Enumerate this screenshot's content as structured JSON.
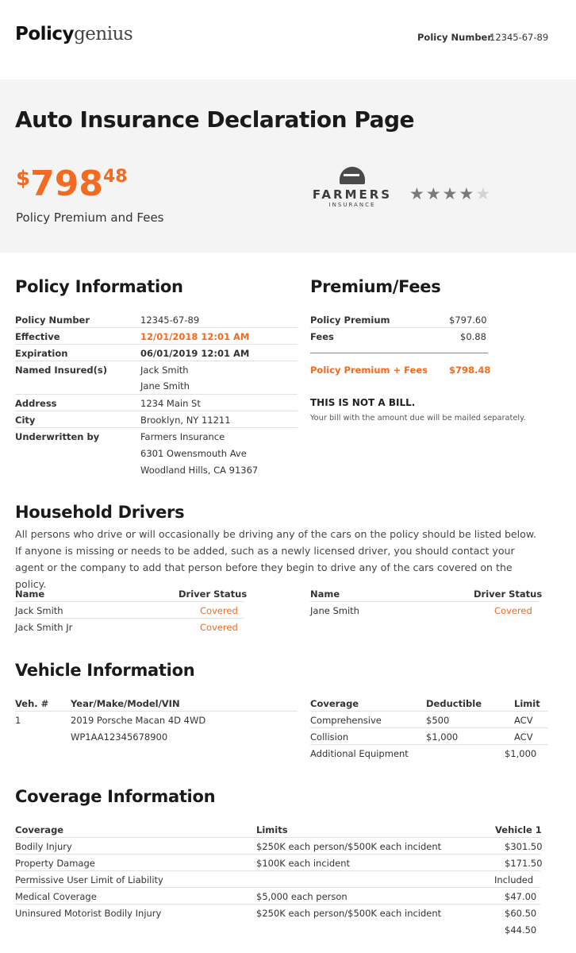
{
  "header": {
    "logo_bold": "Policy",
    "logo_light": "genius",
    "policy_number_label": "Policy Number",
    "policy_number_value": "12345-67-89"
  },
  "hero": {
    "title": "Auto Insurance Declaration Page",
    "price_currency": "$",
    "price_dollars": "798",
    "price_cents": "48",
    "price_label": "Policy Premium and Fees",
    "carrier_name": "FARMERS",
    "carrier_sub": "INSURANCE",
    "rating": {
      "value": 4,
      "max": 5,
      "filled": "★★★★",
      "empty": "★"
    }
  },
  "policy_info": {
    "title": "Policy Information",
    "policy_number_label": "Policy Number",
    "policy_number_value": "12345-67-89",
    "effective_label": "Effective",
    "effective_value": "12/01/2018 12:01 AM",
    "expiration_label": "Expiration",
    "expiration_value": "06/01/2019 12:01 AM",
    "named_insured_label": "Named Insured(s)",
    "named_insured_1": "Jack Smith",
    "named_insured_2": "Jane Smith",
    "address_label": "Address",
    "address_value": "1234 Main St",
    "city_label": "City",
    "city_value": "Brooklyn, NY 11211",
    "underwritten_label": "Underwritten by",
    "underwriter_1": "Farmers Insurance",
    "underwriter_2": "6301 Owensmouth Ave",
    "underwriter_3": "Woodland Hills, CA 91367"
  },
  "premium": {
    "title": "Premium/Fees",
    "policy_premium_label": "Policy Premium",
    "policy_premium_value": "$797.60",
    "fees_label": "Fees",
    "fees_value": "$0.88",
    "total_label": "Policy Premium + Fees",
    "total_value": "$798.48",
    "notice_title": "THIS IS NOT A BILL.",
    "notice_text": "Your bill with the amount due will be mailed separately."
  },
  "drivers": {
    "title": "Household Drivers",
    "intro": "All persons who drive or will occasionally be driving any of the cars on the policy should be listed below. If anyone is missing or needs to be added, such as a newly licensed driver, you should contact your agent or the company to add that person before they begin to drive any of the cars covered on the policy.",
    "col_name": "Name",
    "col_status": "Driver Status",
    "left": [
      {
        "name": "Jack Smith",
        "status": "Covered"
      },
      {
        "name": "Jack Smith Jr",
        "status": "Covered"
      }
    ],
    "right": [
      {
        "name": "Jane Smith",
        "status": "Covered"
      }
    ]
  },
  "vehicle": {
    "title": "Vehicle Information",
    "col_veh": "Veh. #",
    "col_ymm": "Year/Make/Model/VIN",
    "veh_number": "1",
    "ymm": "2019 Porsche Macan 4D 4WD",
    "vin": "WP1AA12345678900",
    "col_coverage": "Coverage",
    "col_deductible": "Deductible",
    "col_limit": "Limit",
    "rows": [
      {
        "coverage": "Comprehensive",
        "deductible": "$500",
        "limit": "ACV"
      },
      {
        "coverage": "Collision",
        "deductible": "$1,000",
        "limit": "ACV"
      },
      {
        "coverage": "Additional Equipment",
        "deductible": "",
        "limit": "$1,000"
      }
    ]
  },
  "coverage": {
    "title": "Coverage Information",
    "col_coverage": "Coverage",
    "col_limits": "Limits",
    "col_vehicle": "Vehicle 1",
    "rows": [
      {
        "name": "Bodily Injury",
        "limit": "$250K each person/$500K each incident",
        "amount": "$301.50"
      },
      {
        "name": "Property Damage",
        "limit": "$100K each incident",
        "amount": "$171.50"
      },
      {
        "name": "Permissive User Limit of Liability",
        "limit": "",
        "amount": "Included"
      },
      {
        "name": "Medical Coverage",
        "limit": "$5,000 each person",
        "amount": "$47.00"
      },
      {
        "name": "Uninsured Motorist Bodily Injury",
        "limit": "$250K each person/$500K each incident",
        "amount": "$60.50"
      }
    ],
    "extra_amount": "$44.50"
  }
}
